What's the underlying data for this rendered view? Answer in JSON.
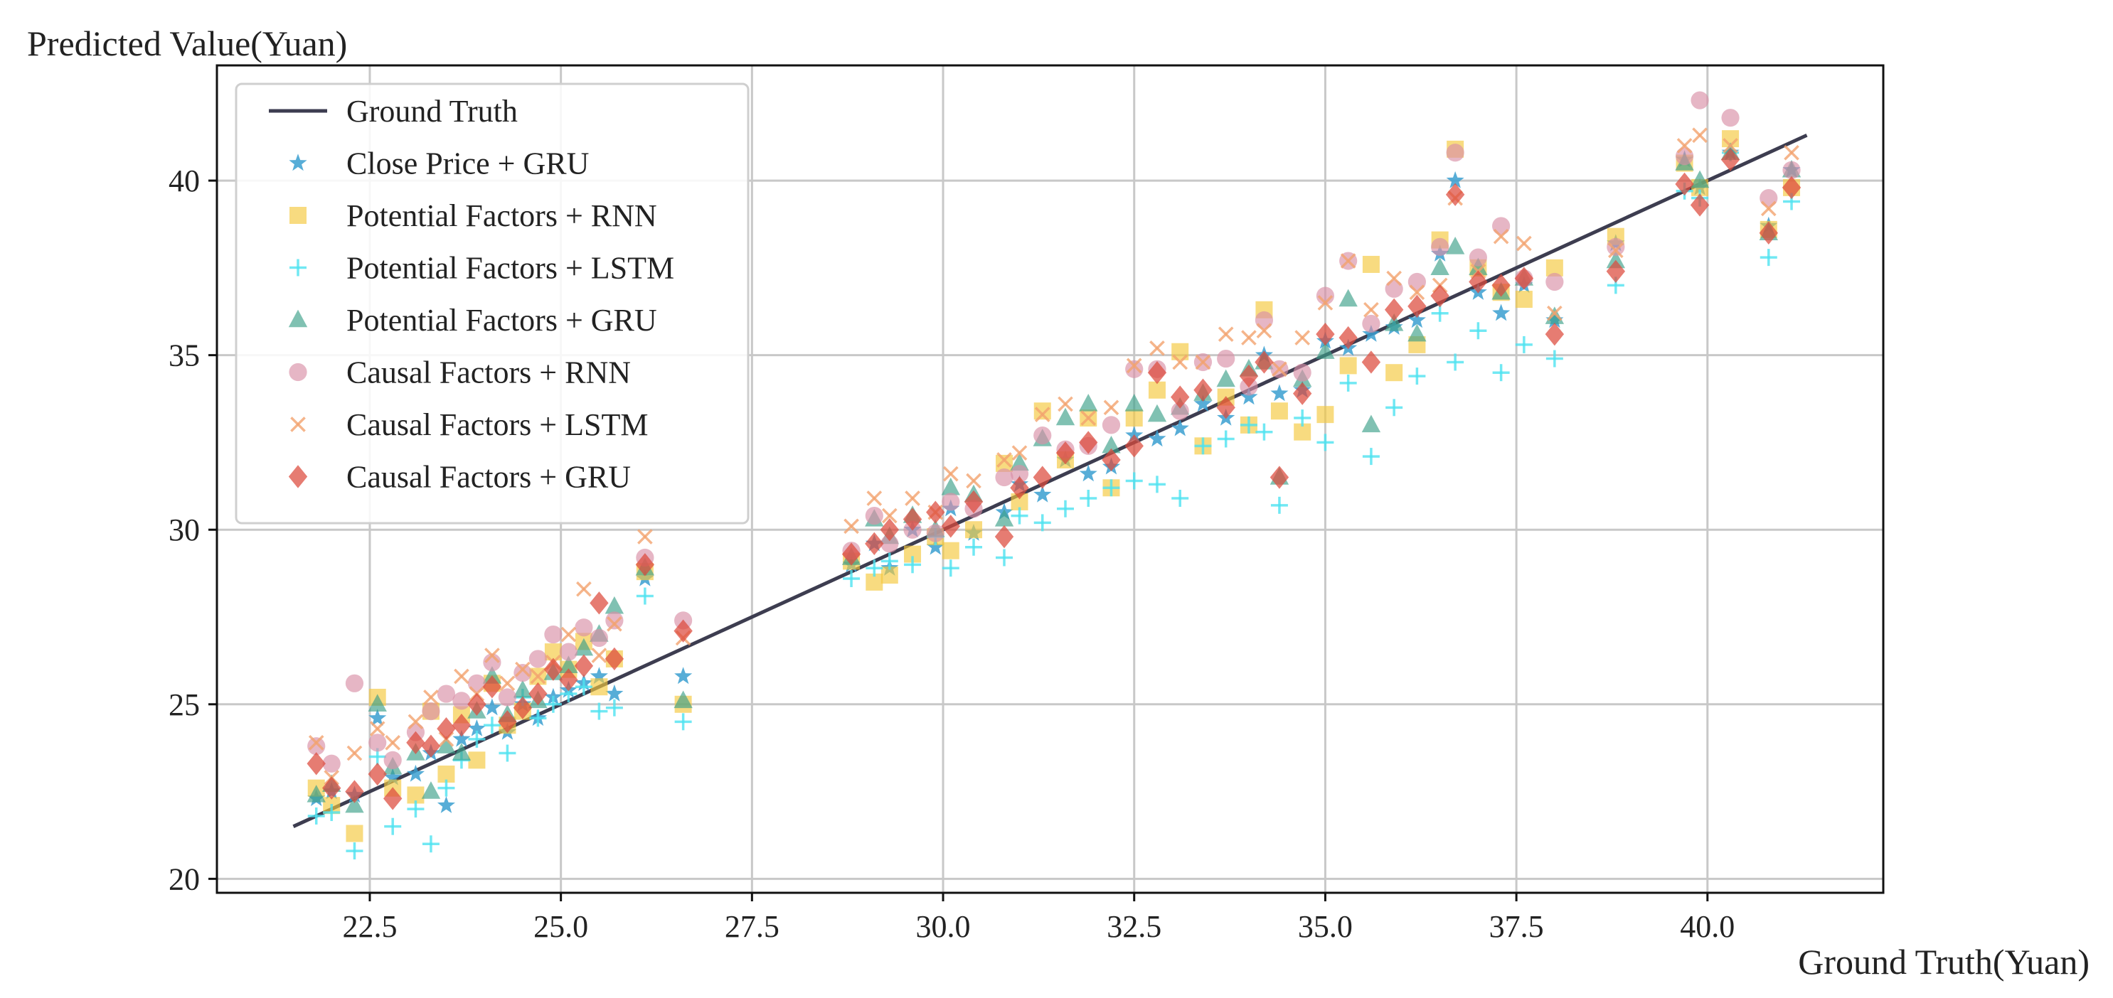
{
  "chart_data": {
    "type": "scatter",
    "title": "",
    "ylabel": "Predicted Value(Yuan)",
    "xlabel": "Ground Truth(Yuan)",
    "xlim": [
      20.5,
      42.3
    ],
    "ylim": [
      19.6,
      43.3
    ],
    "xticks": [
      22.5,
      25.0,
      27.5,
      30.0,
      32.5,
      35.0,
      37.5,
      40.0
    ],
    "xtick_labels": [
      "22.5",
      "25.0",
      "27.5",
      "30.0",
      "32.5",
      "35.0",
      "37.5",
      "40.0"
    ],
    "yticks": [
      20,
      25,
      30,
      35,
      40
    ],
    "ytick_labels": [
      "20",
      "25",
      "30",
      "35",
      "40"
    ],
    "grid": true,
    "legend_position": "top-left",
    "ground_truth_line": {
      "name": "Ground Truth",
      "x": [
        21.5,
        41.3
      ],
      "y": [
        21.5,
        41.3
      ],
      "color": "#3d3d50"
    },
    "ground_truth": [
      21.8,
      22.0,
      22.3,
      22.6,
      22.8,
      23.1,
      23.3,
      23.5,
      23.7,
      23.9,
      24.1,
      24.3,
      24.5,
      24.7,
      24.9,
      25.1,
      25.3,
      25.5,
      25.7,
      26.1,
      26.6,
      28.8,
      29.1,
      29.3,
      29.6,
      29.9,
      30.1,
      30.4,
      30.8,
      31.0,
      31.3,
      31.6,
      31.9,
      32.2,
      32.5,
      32.8,
      33.1,
      33.4,
      33.7,
      34.0,
      34.2,
      34.4,
      34.7,
      35.0,
      35.3,
      35.6,
      35.9,
      36.2,
      36.5,
      36.7,
      37.0,
      37.3,
      37.6,
      38.0,
      38.8,
      39.7,
      39.9,
      40.3,
      40.8,
      41.1
    ],
    "series": [
      {
        "name": "Close Price + GRU",
        "marker": "star",
        "color": "#3a9fd0",
        "values": [
          22.3,
          22.5,
          22.4,
          24.6,
          22.9,
          23.0,
          23.6,
          22.1,
          24.0,
          24.3,
          24.9,
          24.2,
          25.0,
          24.6,
          25.2,
          25.4,
          25.6,
          25.8,
          25.3,
          28.6,
          25.8,
          29.0,
          29.6,
          28.9,
          30.0,
          29.5,
          30.6,
          29.9,
          30.5,
          31.3,
          31.0,
          32.0,
          31.6,
          31.8,
          32.7,
          32.6,
          32.9,
          33.6,
          33.2,
          33.8,
          35.0,
          33.9,
          34.0,
          35.4,
          35.2,
          35.6,
          35.8,
          36.0,
          37.9,
          40.0,
          36.8,
          36.2,
          37.0,
          36.0,
          38.2,
          40.6,
          39.8,
          40.8,
          38.7,
          40.3
        ]
      },
      {
        "name": "Potential Factors + RNN",
        "marker": "square",
        "color": "#f5c83c",
        "values": [
          22.6,
          22.1,
          21.3,
          25.2,
          22.6,
          22.4,
          24.8,
          23.0,
          24.7,
          23.4,
          25.6,
          24.4,
          24.8,
          25.8,
          26.5,
          26.0,
          26.8,
          25.5,
          26.3,
          28.8,
          25.0,
          29.1,
          28.5,
          28.7,
          29.3,
          29.8,
          29.4,
          30.0,
          31.9,
          30.8,
          33.4,
          32.0,
          33.2,
          31.2,
          33.2,
          34.0,
          35.1,
          32.4,
          33.8,
          33.0,
          36.3,
          33.4,
          32.8,
          33.3,
          34.7,
          37.6,
          34.5,
          35.3,
          38.3,
          40.9,
          37.5,
          36.8,
          36.6,
          37.5,
          38.4,
          40.5,
          39.8,
          41.2,
          38.6,
          39.8
        ]
      },
      {
        "name": "Potential Factors + LSTM",
        "marker": "plus",
        "color": "#4ee2f0",
        "values": [
          21.8,
          21.9,
          20.8,
          23.5,
          21.5,
          22.0,
          21.0,
          22.6,
          23.4,
          24.0,
          24.4,
          23.6,
          25.2,
          24.6,
          25.0,
          25.3,
          25.5,
          24.8,
          24.9,
          28.1,
          24.5,
          28.6,
          28.9,
          29.1,
          29.0,
          29.8,
          28.9,
          29.5,
          29.2,
          30.4,
          30.2,
          30.6,
          30.9,
          31.2,
          31.4,
          31.3,
          30.9,
          32.4,
          32.6,
          33.0,
          32.8,
          30.7,
          33.2,
          32.5,
          34.2,
          32.1,
          33.5,
          34.4,
          36.2,
          34.8,
          35.7,
          34.5,
          35.3,
          34.9,
          37.0,
          39.7,
          39.5,
          40.8,
          37.8,
          39.4
        ]
      },
      {
        "name": "Potential Factors + GRU",
        "marker": "triangle",
        "color": "#3ca088",
        "values": [
          22.4,
          22.7,
          22.1,
          25.0,
          23.2,
          23.6,
          22.5,
          23.8,
          23.6,
          24.8,
          25.8,
          24.7,
          25.4,
          25.1,
          25.9,
          26.1,
          26.6,
          27.0,
          27.8,
          28.9,
          25.1,
          29.2,
          30.3,
          29.8,
          30.4,
          30.0,
          31.2,
          31.0,
          30.3,
          31.9,
          32.6,
          33.2,
          33.6,
          32.4,
          33.6,
          33.3,
          33.5,
          33.9,
          34.3,
          34.6,
          34.8,
          31.5,
          34.3,
          35.1,
          36.6,
          33.0,
          35.9,
          35.6,
          37.5,
          38.1,
          37.5,
          36.8,
          37.2,
          36.1,
          37.7,
          40.5,
          40.0,
          40.8,
          38.5,
          40.3
        ]
      },
      {
        "name": "Causal Factors + RNN",
        "marker": "circle",
        "color": "#d88fa6",
        "values": [
          23.8,
          23.3,
          25.6,
          23.9,
          23.4,
          24.2,
          24.8,
          25.3,
          25.1,
          25.6,
          26.2,
          25.2,
          25.9,
          26.3,
          27.0,
          26.5,
          27.2,
          26.9,
          27.4,
          29.2,
          27.4,
          29.4,
          30.4,
          29.6,
          30.0,
          29.9,
          30.8,
          30.6,
          31.5,
          31.6,
          32.7,
          32.3,
          32.4,
          33.0,
          34.6,
          34.6,
          33.4,
          34.8,
          34.9,
          34.1,
          36.0,
          34.6,
          34.5,
          36.7,
          37.7,
          35.9,
          36.9,
          37.1,
          38.1,
          40.8,
          37.8,
          38.7,
          37.2,
          37.1,
          38.1,
          40.7,
          42.3,
          41.8,
          39.5,
          40.3
        ]
      },
      {
        "name": "Causal Factors + LSTM",
        "marker": "x",
        "color": "#f2a36e",
        "values": [
          23.9,
          22.9,
          23.6,
          24.3,
          23.9,
          24.5,
          25.2,
          24.0,
          25.8,
          25.3,
          26.4,
          25.6,
          26.0,
          25.8,
          26.2,
          27.0,
          28.3,
          26.4,
          27.3,
          29.8,
          26.9,
          30.1,
          30.9,
          30.4,
          30.9,
          30.5,
          31.6,
          31.4,
          32.0,
          32.2,
          33.3,
          33.6,
          33.2,
          33.5,
          34.7,
          35.2,
          34.8,
          34.8,
          35.6,
          35.5,
          35.7,
          34.6,
          35.5,
          36.5,
          37.7,
          36.3,
          37.2,
          36.8,
          37.0,
          39.5,
          37.4,
          38.4,
          38.2,
          36.2,
          38.0,
          41.0,
          41.3,
          41.0,
          39.2,
          40.8
        ]
      },
      {
        "name": "Causal Factors + GRU",
        "marker": "diamond",
        "color": "#dc4a3c",
        "values": [
          23.3,
          22.6,
          22.5,
          23.0,
          22.3,
          23.9,
          23.8,
          24.3,
          24.4,
          25.0,
          25.5,
          24.5,
          24.9,
          25.3,
          26.0,
          25.7,
          26.1,
          27.9,
          26.3,
          29.0,
          27.1,
          29.3,
          29.6,
          30.0,
          30.3,
          30.5,
          30.1,
          30.8,
          29.8,
          31.2,
          31.5,
          32.2,
          32.5,
          32.0,
          32.4,
          34.5,
          33.8,
          34.0,
          33.5,
          34.4,
          34.8,
          31.5,
          33.9,
          35.6,
          35.5,
          34.8,
          36.3,
          36.4,
          36.7,
          39.6,
          37.1,
          37.0,
          37.2,
          35.6,
          37.4,
          39.9,
          39.3,
          40.6,
          38.5,
          39.8
        ]
      }
    ]
  }
}
